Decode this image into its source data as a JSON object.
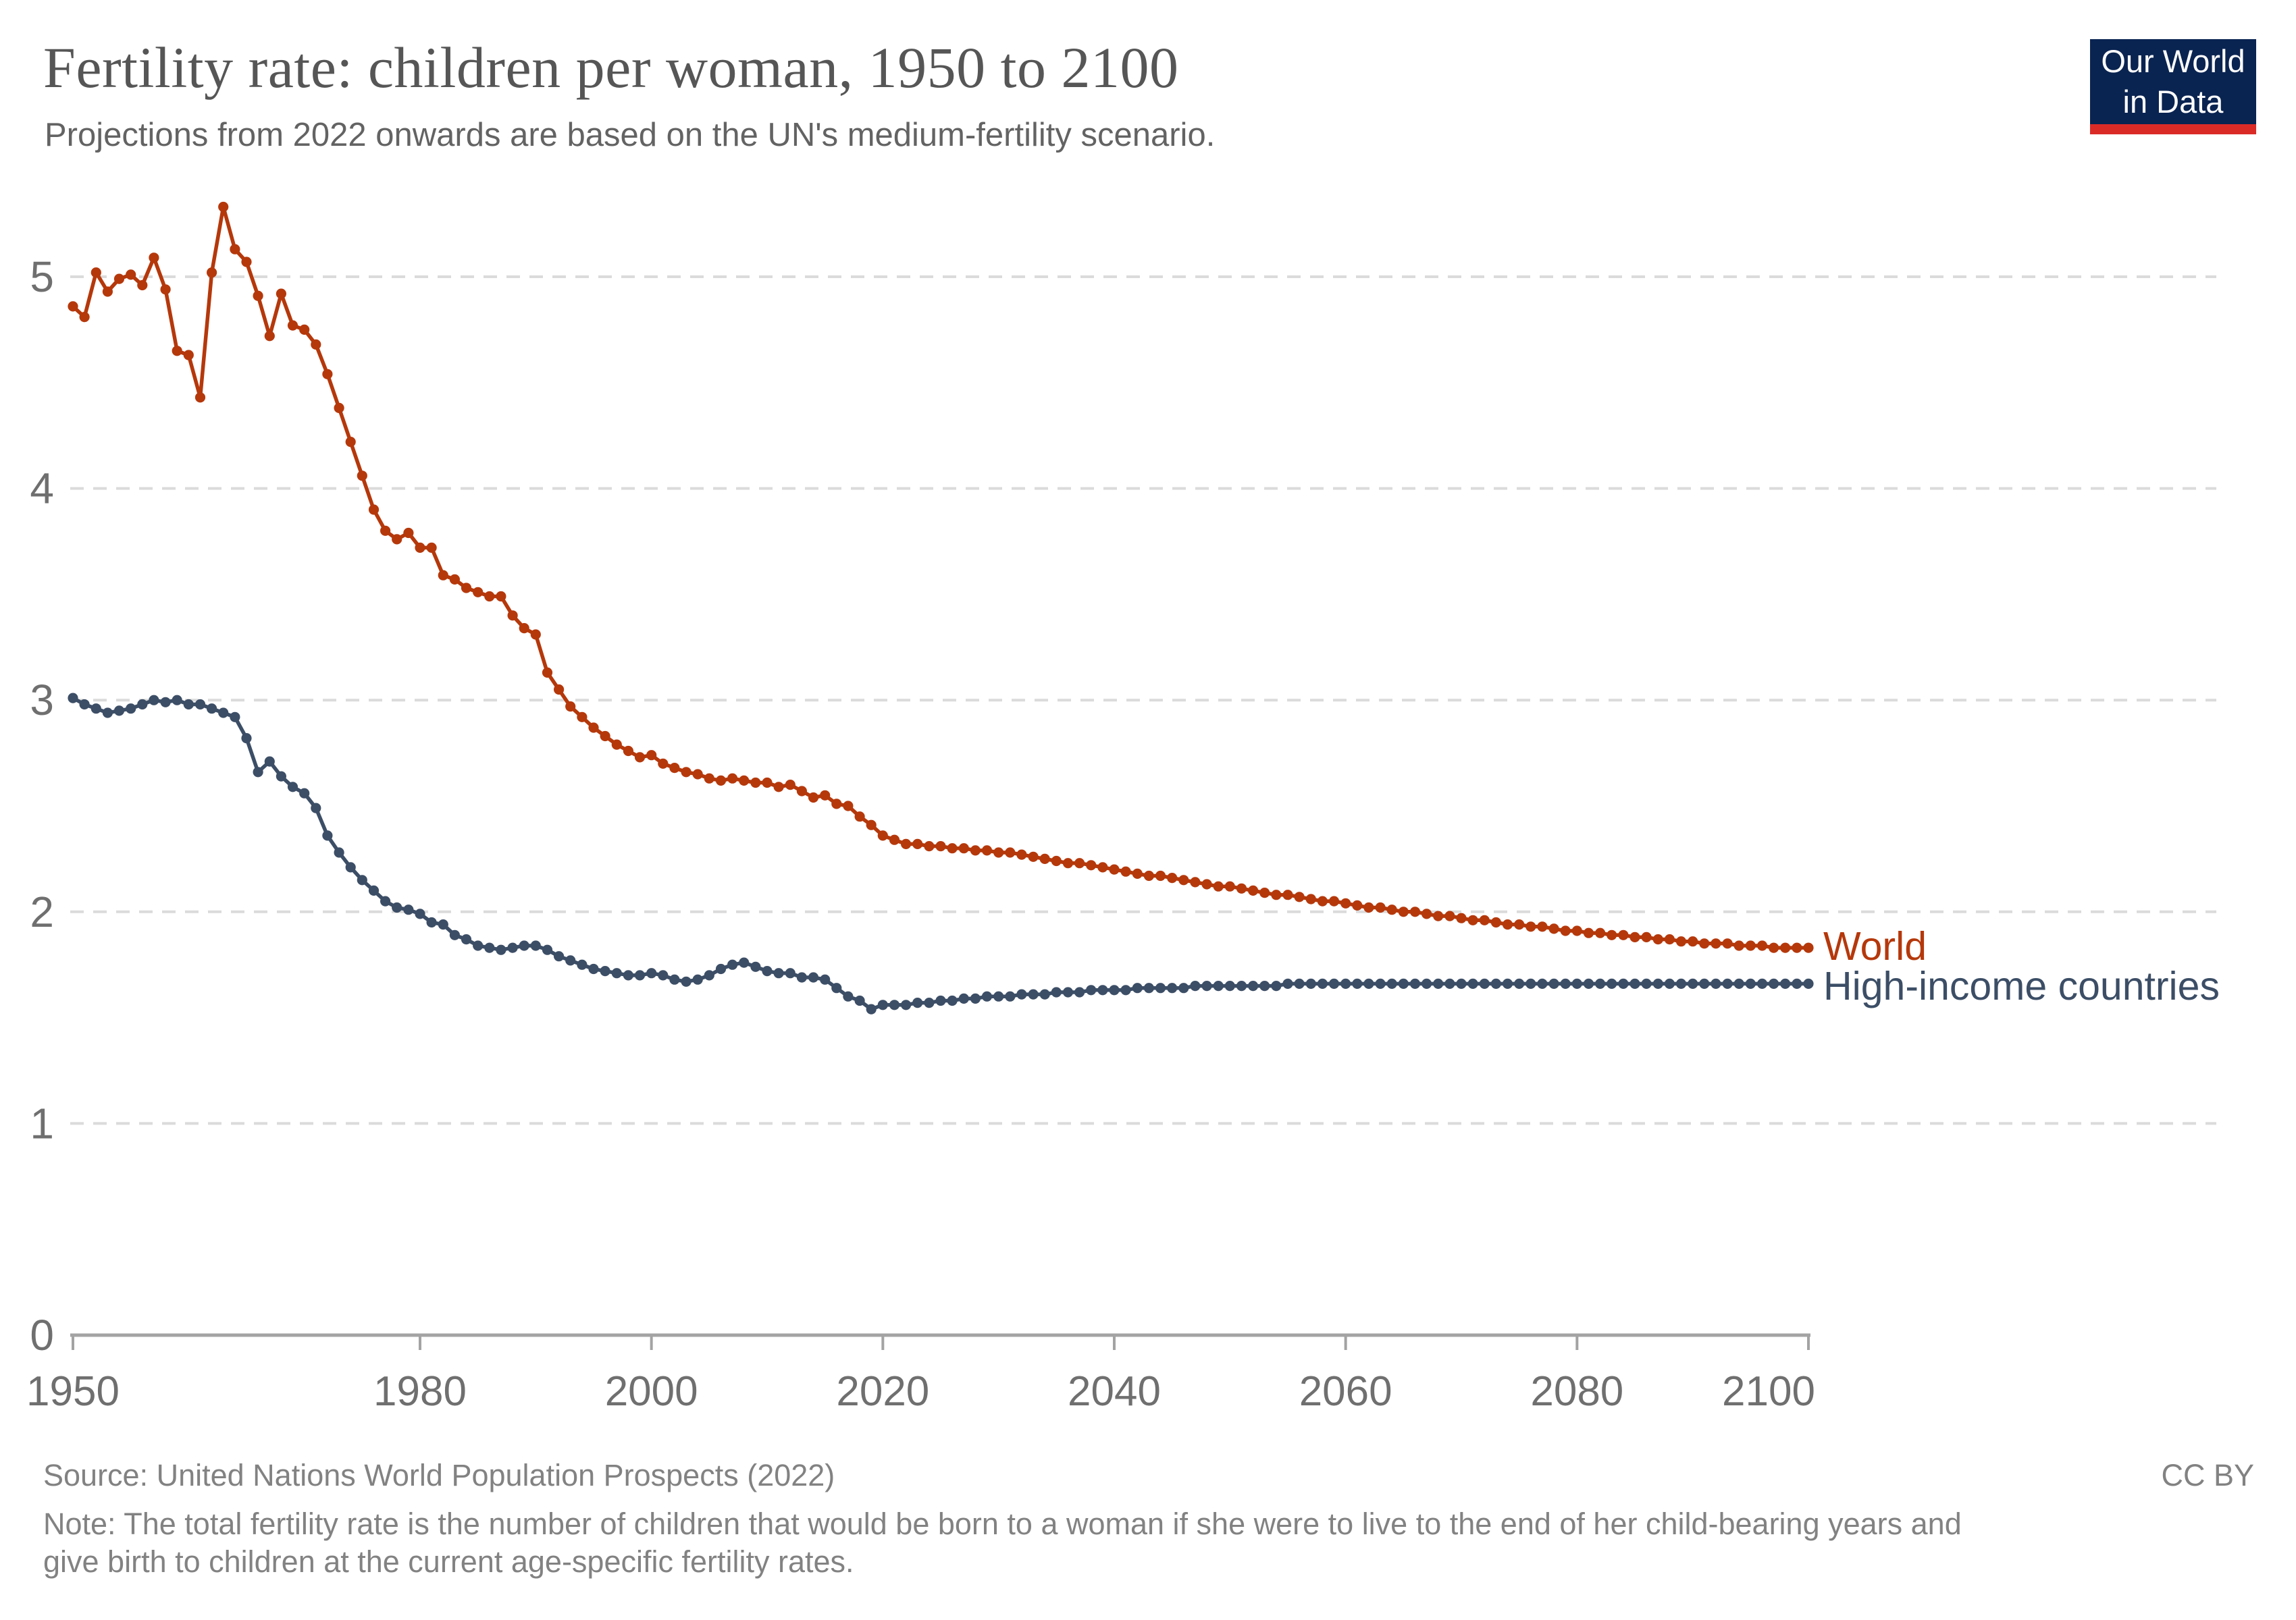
{
  "header": {
    "title": "Fertility rate: children per woman, 1950 to 2100",
    "subtitle": "Projections from 2022 onwards are based on the UN's medium-fertility scenario."
  },
  "logo": {
    "line1": "Our World",
    "line2": "in Data"
  },
  "series_labels": {
    "world": "World",
    "high_income": "High-income countries"
  },
  "footer": {
    "source": "Source: United Nations World Population Prospects (2022)",
    "license": "CC BY",
    "note_line1": "Note: The total fertility rate is the number of children that would be born to a woman if she were to live to the end of her child-bearing years and",
    "note_line2": "give birth to children at the current age-specific fertility rates."
  },
  "colors": {
    "world": "#B5380B",
    "high_income": "#3C4E66",
    "grid": "#DBDBDB",
    "axis": "#A3A3A3",
    "tick_text": "#6F6F6F",
    "logo_bg": "#0A2451",
    "logo_bar": "#DB2B27"
  },
  "chart_data": {
    "type": "line",
    "title": "Fertility rate: children per woman, 1950 to 2100",
    "xlabel": "",
    "ylabel": "",
    "xlim": [
      1950,
      2100
    ],
    "ylim": [
      0,
      5.45
    ],
    "x_ticks": [
      1950,
      1980,
      2000,
      2020,
      2040,
      2060,
      2080,
      2100
    ],
    "y_ticks": [
      0,
      1,
      2,
      3,
      4,
      5
    ],
    "grid": "dashed horizontal gridlines at 1-5, solid baseline at 0",
    "legend_position": "right edge of lines, colored text labels",
    "projection_note": "values from 2022 onwards are UN medium-fertility projections",
    "x_start": 1950,
    "x_step": 1,
    "series": [
      {
        "name": "World",
        "color_key": "world",
        "values": [
          4.86,
          4.81,
          5.02,
          4.93,
          4.99,
          5.01,
          4.96,
          5.09,
          4.94,
          4.65,
          4.63,
          4.43,
          5.02,
          5.33,
          5.13,
          5.07,
          4.91,
          4.72,
          4.92,
          4.77,
          4.75,
          4.68,
          4.54,
          4.38,
          4.22,
          4.06,
          3.9,
          3.8,
          3.76,
          3.79,
          3.72,
          3.72,
          3.59,
          3.57,
          3.53,
          3.51,
          3.49,
          3.49,
          3.4,
          3.34,
          3.31,
          3.13,
          3.05,
          2.97,
          2.92,
          2.87,
          2.83,
          2.79,
          2.76,
          2.73,
          2.74,
          2.7,
          2.68,
          2.66,
          2.65,
          2.63,
          2.62,
          2.63,
          2.62,
          2.61,
          2.61,
          2.59,
          2.6,
          2.57,
          2.54,
          2.55,
          2.51,
          2.5,
          2.45,
          2.41,
          2.36,
          2.34,
          2.32,
          2.32,
          2.31,
          2.31,
          2.3,
          2.3,
          2.29,
          2.29,
          2.28,
          2.28,
          2.27,
          2.26,
          2.25,
          2.24,
          2.23,
          2.23,
          2.22,
          2.21,
          2.2,
          2.19,
          2.18,
          2.17,
          2.17,
          2.16,
          2.15,
          2.14,
          2.13,
          2.12,
          2.12,
          2.11,
          2.1,
          2.09,
          2.08,
          2.08,
          2.07,
          2.06,
          2.05,
          2.05,
          2.04,
          2.03,
          2.02,
          2.02,
          2.01,
          2.0,
          2.0,
          1.99,
          1.98,
          1.98,
          1.97,
          1.96,
          1.96,
          1.95,
          1.94,
          1.94,
          1.93,
          1.93,
          1.92,
          1.91,
          1.91,
          1.9,
          1.9,
          1.89,
          1.89,
          1.88,
          1.88,
          1.87,
          1.87,
          1.86,
          1.86,
          1.85,
          1.85,
          1.85,
          1.84,
          1.84,
          1.84,
          1.83,
          1.83,
          1.83,
          1.83
        ]
      },
      {
        "name": "High-income countries",
        "color_key": "high_income",
        "values": [
          3.01,
          2.98,
          2.96,
          2.94,
          2.95,
          2.96,
          2.98,
          3.0,
          2.99,
          3.0,
          2.98,
          2.98,
          2.96,
          2.94,
          2.92,
          2.82,
          2.66,
          2.71,
          2.64,
          2.59,
          2.56,
          2.49,
          2.36,
          2.28,
          2.21,
          2.15,
          2.1,
          2.05,
          2.02,
          2.01,
          1.99,
          1.95,
          1.94,
          1.89,
          1.87,
          1.84,
          1.83,
          1.82,
          1.83,
          1.84,
          1.84,
          1.82,
          1.79,
          1.77,
          1.75,
          1.73,
          1.72,
          1.71,
          1.7,
          1.7,
          1.71,
          1.7,
          1.68,
          1.67,
          1.68,
          1.7,
          1.73,
          1.75,
          1.76,
          1.74,
          1.72,
          1.71,
          1.71,
          1.69,
          1.69,
          1.68,
          1.64,
          1.6,
          1.58,
          1.54,
          1.56,
          1.56,
          1.56,
          1.57,
          1.57,
          1.58,
          1.58,
          1.59,
          1.59,
          1.6,
          1.6,
          1.6,
          1.61,
          1.61,
          1.61,
          1.62,
          1.62,
          1.62,
          1.63,
          1.63,
          1.63,
          1.63,
          1.64,
          1.64,
          1.64,
          1.64,
          1.64,
          1.65,
          1.65,
          1.65,
          1.65,
          1.65,
          1.65,
          1.65,
          1.65,
          1.66,
          1.66,
          1.66,
          1.66,
          1.66,
          1.66,
          1.66,
          1.66,
          1.66,
          1.66,
          1.66,
          1.66,
          1.66,
          1.66,
          1.66,
          1.66,
          1.66,
          1.66,
          1.66,
          1.66,
          1.66,
          1.66,
          1.66,
          1.66,
          1.66,
          1.66,
          1.66,
          1.66,
          1.66,
          1.66,
          1.66,
          1.66,
          1.66,
          1.66,
          1.66,
          1.66,
          1.66,
          1.66,
          1.66,
          1.66,
          1.66,
          1.66,
          1.66,
          1.66,
          1.66,
          1.66
        ]
      }
    ]
  }
}
